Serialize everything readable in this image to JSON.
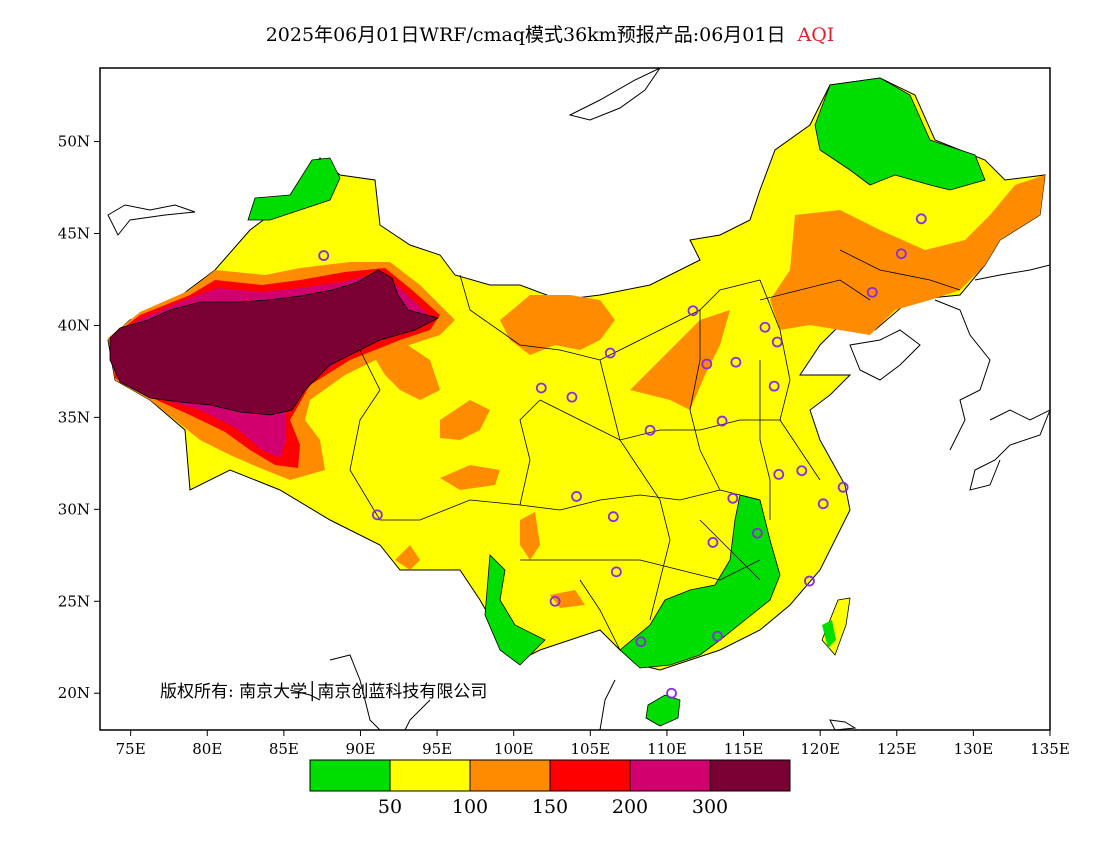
{
  "title": {
    "main": "2025年06月01日WRF/cmaq模式36km预报产品:06月01日",
    "product": "AQI"
  },
  "map": {
    "lon_range": [
      73,
      135
    ],
    "lat_range": [
      18,
      54
    ],
    "x_ticks": [
      "75E",
      "80E",
      "85E",
      "90E",
      "95E",
      "100E",
      "105E",
      "110E",
      "115E",
      "120E",
      "125E",
      "130E",
      "135E"
    ],
    "y_ticks": [
      "20N",
      "25N",
      "30N",
      "35N",
      "40N",
      "45N",
      "50N"
    ],
    "copyright": "版权所有: 南京大学│南京创蓝科技有限公司"
  },
  "legend": {
    "colors": [
      "#00dd00",
      "#ffff00",
      "#ff8c00",
      "#ff0000",
      "#d2006e",
      "#7a0033"
    ],
    "breaks": [
      "50",
      "100",
      "150",
      "200",
      "300"
    ]
  },
  "stations": [
    [
      87.6,
      43.8
    ],
    [
      91.1,
      29.7
    ],
    [
      101.8,
      36.6
    ],
    [
      103.8,
      36.1
    ],
    [
      106.3,
      38.5
    ],
    [
      111.7,
      40.8
    ],
    [
      112.6,
      37.9
    ],
    [
      114.5,
      38.0
    ],
    [
      116.4,
      39.9
    ],
    [
      117.2,
      39.1
    ],
    [
      117.0,
      36.7
    ],
    [
      113.6,
      34.8
    ],
    [
      108.9,
      34.3
    ],
    [
      104.1,
      30.7
    ],
    [
      106.5,
      29.6
    ],
    [
      106.7,
      26.6
    ],
    [
      102.7,
      25.0
    ],
    [
      108.3,
      22.8
    ],
    [
      113.3,
      23.1
    ],
    [
      110.3,
      20.0
    ],
    [
      113.0,
      28.2
    ],
    [
      114.3,
      30.6
    ],
    [
      115.9,
      28.7
    ],
    [
      117.3,
      31.9
    ],
    [
      118.8,
      32.1
    ],
    [
      120.2,
      30.3
    ],
    [
      121.5,
      31.2
    ],
    [
      119.3,
      26.1
    ],
    [
      123.4,
      41.8
    ],
    [
      125.3,
      43.9
    ],
    [
      126.6,
      45.8
    ]
  ]
}
